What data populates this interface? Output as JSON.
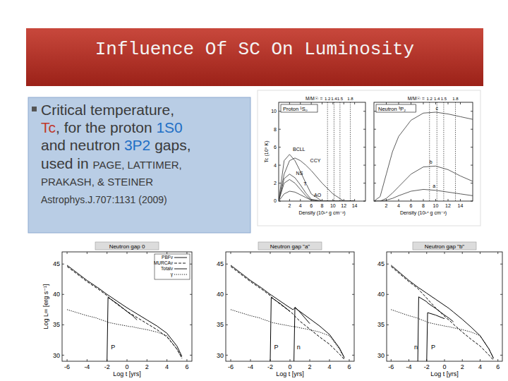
{
  "title": "Influence Of SC On Luminosity",
  "bullet": {
    "lines": [
      [
        {
          "text": "Critical temperature,"
        }
      ],
      [
        {
          "text": "Tc",
          "color": "#c0392b"
        },
        {
          "text": ", for the proton "
        },
        {
          "text": "1S0",
          "color": "#1f6fc5"
        }
      ],
      [
        {
          "text": "and neutron "
        },
        {
          "text": "3P2",
          "color": "#1f6fc5"
        },
        {
          "text": " gaps,"
        }
      ],
      [
        {
          "text": "used in "
        },
        {
          "text": "PAGE, LATTIMER,"
        }
      ],
      [
        {
          "text": "PRAKASH, & STEINER"
        }
      ],
      [
        {
          "text": "Astrophys.J.707:1131 (2009)"
        }
      ]
    ]
  },
  "chart_data": [
    {
      "type": "line",
      "title": "Proton ¹S₀",
      "x_label": "Density (10¹⁴ g cm⁻³)",
      "y_label": "Tc (10⁹ K)",
      "x": [
        0,
        1,
        2,
        3,
        4,
        5,
        6,
        8,
        10,
        12,
        14
      ],
      "series": [
        {
          "color": "#333333",
          "line_style": "solid",
          "values": [
            0,
            4.5,
            5.2,
            4.5,
            3.3,
            2,
            0.8,
            0,
            0,
            0,
            0
          ]
        },
        {
          "color": "#333333",
          "line_style": "solid",
          "values": [
            0,
            3,
            4.5,
            4.8,
            4.5,
            4,
            3.4,
            2,
            0.8,
            0,
            0
          ]
        },
        {
          "color": "#333333",
          "line_style": "solid",
          "values": [
            0,
            2.5,
            3,
            2.6,
            1.8,
            0.9,
            0.2,
            0,
            0,
            0,
            0
          ]
        },
        {
          "color": "#333333",
          "line_style": "solid",
          "values": [
            0,
            2,
            2.4,
            2,
            1.3,
            0.6,
            0.1,
            0,
            0,
            0,
            0
          ]
        },
        {
          "color": "#333333",
          "line_style": "solid",
          "values": [
            0,
            0.8,
            1.1,
            1,
            0.7,
            0.4,
            0.1,
            0,
            0,
            0,
            0
          ]
        }
      ],
      "annotations": [
        {
          "text": "BCLL",
          "x": 2.6,
          "y": 5.6
        },
        {
          "text": "CCY",
          "x": 5.8,
          "y": 4.3
        },
        {
          "text": "NS",
          "x": 3.2,
          "y": 2.9
        },
        {
          "text": "T",
          "x": 4.6,
          "y": 1.7
        },
        {
          "text": "AO",
          "x": 6.5,
          "y": 0.5
        }
      ],
      "mass_axis": {
        "label": "M/M☉ =",
        "ticks": [
          {
            "value": 9,
            "label": "1.2"
          },
          {
            "value": 10.2,
            "label": "1.4"
          },
          {
            "value": 11.3,
            "label": "1.5"
          },
          {
            "value": 13.2,
            "label": "1.8"
          }
        ]
      },
      "xlim": [
        0,
        16
      ],
      "xticks": [
        2,
        4,
        6,
        8,
        10,
        12,
        14
      ],
      "ylim": [
        0,
        11
      ],
      "yticks": [
        0,
        2,
        4,
        6,
        8,
        10
      ]
    },
    {
      "type": "line",
      "title": "Neutron ³P₂",
      "x_label": "Density (10¹⁴ g cm⁻³)",
      "x": [
        0,
        1,
        2,
        3,
        4,
        6,
        8,
        10,
        12,
        14,
        16
      ],
      "series": [
        {
          "color": "#333333",
          "line_style": "solid",
          "values": [
            0,
            0.5,
            3,
            5.5,
            7.2,
            9,
            9.8,
            9.9,
            9.7,
            9.4,
            9.1
          ]
        },
        {
          "color": "#333333",
          "line_style": "solid",
          "values": [
            0,
            0,
            0.3,
            0.9,
            1.6,
            3,
            3.8,
            3.9,
            3.5,
            2.8,
            2.2
          ]
        },
        {
          "color": "#333333",
          "line_style": "solid",
          "values": [
            0,
            0,
            0.1,
            0.3,
            0.6,
            1.1,
            1.3,
            1.2,
            1,
            0.8,
            0.6
          ]
        }
      ],
      "annotations": [
        {
          "text": "c",
          "x": 10,
          "y": 10.1
        },
        {
          "text": "b",
          "x": 9,
          "y": 4.2
        },
        {
          "text": "a",
          "x": 9.5,
          "y": 1.5
        }
      ],
      "mass_axis": {
        "label": "M/M☉ =",
        "ticks": [
          {
            "value": 9,
            "label": "1.2"
          },
          {
            "value": 10.2,
            "label": "1.4"
          },
          {
            "value": 11.3,
            "label": "1.5"
          },
          {
            "value": 13.2,
            "label": "1.8"
          }
        ]
      },
      "xlim": [
        0,
        16
      ],
      "xticks": [
        2,
        4,
        6,
        8,
        10,
        12,
        14
      ],
      "ylim": [
        0,
        11
      ],
      "yticks": [
        0,
        2,
        4,
        6,
        8,
        10
      ],
      "tick_labels": "x"
    },
    {
      "type": "line",
      "title": "Neutron gap 0",
      "x_label": "Log t [yrs]",
      "y_label": "Log L∞ [erg s⁻¹]",
      "x": [
        -6,
        -4,
        -3,
        -2.9,
        -2,
        -1.9,
        -1,
        0,
        0.3,
        0.4,
        0.5,
        1,
        2,
        3,
        4,
        5,
        5.5
      ],
      "series": [
        {
          "name": "PBFν",
          "color": "#000000",
          "line_style": "solid",
          "values": [
            null,
            null,
            null,
            null,
            29,
            39.5,
            38.5,
            37.2,
            36.8,
            36.7,
            36.6,
            35.8,
            null,
            null,
            null,
            null,
            null
          ]
        },
        {
          "name": "MURCAν",
          "color": "#000000",
          "line_style": "dashed",
          "values": [
            44.6,
            42.1,
            41,
            40.9,
            39.8,
            39.6,
            38.4,
            37.2,
            36.9,
            36.8,
            36.7,
            36.2,
            35.2,
            34.2,
            33,
            31,
            29.5
          ]
        },
        {
          "name": "Totalν",
          "color": "#000000",
          "line_style": "solid",
          "values": [
            44.8,
            42.3,
            41.2,
            41.1,
            40,
            39.9,
            38.9,
            37.8,
            37.5,
            37.4,
            37.3,
            36.8,
            35.8,
            34.8,
            33.6,
            31.5,
            29.8
          ]
        },
        {
          "name": "γ",
          "color": "#000000",
          "line_style": "dotted",
          "values": [
            37.5,
            36.5,
            36.1,
            36,
            35.5,
            35.4,
            35.1,
            34.8,
            34.7,
            34.7,
            34.7,
            34.5,
            34.2,
            33.8,
            33.2,
            31,
            29.5
          ]
        }
      ],
      "annotations": [
        {
          "text": "P",
          "x": -1.6,
          "y": 31
        }
      ],
      "legend": "top-right",
      "xlim": [
        -6.5,
        6.5
      ],
      "xticks": [
        -6,
        -4,
        -2,
        0,
        2,
        4,
        6
      ],
      "ylim": [
        29,
        47
      ],
      "yticks": [
        30,
        35,
        40,
        45
      ]
    },
    {
      "type": "line",
      "title": "Neutron gap \"a\"",
      "x_label": "Log t [yrs]",
      "x": [
        -6,
        -4,
        -3,
        -2.9,
        -2,
        -1.9,
        -1,
        0,
        0.3,
        0.4,
        0.5,
        1,
        2,
        3,
        4,
        5,
        5.5
      ],
      "series": [
        {
          "color": "#000000",
          "line_style": "solid",
          "values": [
            null,
            null,
            null,
            null,
            29,
            39.5,
            38.5,
            37.2,
            null,
            29,
            37.9,
            37.1,
            35.2,
            null,
            null,
            null,
            null
          ]
        },
        {
          "color": "#000000",
          "line_style": "dashed",
          "values": [
            44.6,
            42.1,
            41,
            40.9,
            39.8,
            39.6,
            38.4,
            37.2,
            36.8,
            36.6,
            36.4,
            35.6,
            34.3,
            33,
            31.8,
            30.2,
            29.3
          ]
        },
        {
          "color": "#000000",
          "line_style": "solid",
          "values": [
            44.8,
            42.3,
            41.2,
            41.1,
            40,
            39.9,
            38.9,
            37.8,
            37.5,
            37.6,
            37.8,
            37.2,
            36,
            34.8,
            33.4,
            31.2,
            29.6
          ]
        },
        {
          "color": "#000000",
          "line_style": "dotted",
          "values": [
            37.5,
            36.5,
            36.1,
            36,
            35.5,
            35.4,
            35.1,
            34.8,
            34.7,
            34.7,
            34.7,
            34.5,
            34.2,
            33.8,
            33.2,
            31,
            29.5
          ]
        }
      ],
      "annotations": [
        {
          "text": "P",
          "x": -1.6,
          "y": 31
        },
        {
          "text": "n",
          "x": 0.7,
          "y": 31
        }
      ],
      "xlim": [
        -6.5,
        6.5
      ],
      "xticks": [
        -6,
        -4,
        -2,
        0,
        2,
        4,
        6
      ],
      "ylim": [
        29,
        47
      ],
      "yticks": [
        30,
        35,
        40,
        45
      ]
    },
    {
      "type": "line",
      "title": "Neutron gap \"b\"",
      "x_label": "Log t [yrs]",
      "x": [
        -6,
        -4,
        -3,
        -2.9,
        -2,
        -1.9,
        -1,
        0,
        0.3,
        0.4,
        0.5,
        1,
        2,
        3,
        4,
        5,
        5.5
      ],
      "series": [
        {
          "color": "#000000",
          "line_style": "solid",
          "values": [
            null,
            null,
            29,
            39.6,
            38.8,
            38.6,
            37.7,
            36.6,
            36.3,
            36.2,
            36.1,
            35.5,
            null,
            null,
            null,
            null,
            null
          ]
        },
        {
          "color": "#000000",
          "line_style": "solid",
          "values": [
            null,
            null,
            null,
            null,
            29,
            37,
            36.6,
            36,
            null,
            null,
            null,
            null,
            null,
            null,
            null,
            null,
            null
          ]
        },
        {
          "color": "#000000",
          "line_style": "dashed",
          "values": [
            44.6,
            42.1,
            41,
            40.8,
            39.4,
            39.2,
            37.8,
            36.4,
            36,
            35.9,
            35.8,
            35.1,
            33.8,
            32.6,
            31.5,
            30,
            29.2
          ]
        },
        {
          "color": "#000000",
          "line_style": "solid",
          "values": [
            44.8,
            42.3,
            41.2,
            41.1,
            40.2,
            40.1,
            39.2,
            38.2,
            37.9,
            37.8,
            37.7,
            37.1,
            35.9,
            34.6,
            33.2,
            31,
            29.5
          ]
        },
        {
          "color": "#000000",
          "line_style": "dotted",
          "values": [
            37.5,
            36.5,
            36.1,
            36,
            35.5,
            35.4,
            35.1,
            34.8,
            34.7,
            34.7,
            34.7,
            34.5,
            34.2,
            33.8,
            33.2,
            31,
            29.5
          ]
        }
      ],
      "annotations": [
        {
          "text": "n",
          "x": -3.4,
          "y": 31
        },
        {
          "text": "P",
          "x": -1.5,
          "y": 31
        }
      ],
      "xlim": [
        -6.5,
        6.5
      ],
      "xticks": [
        -6,
        -4,
        -2,
        0,
        2,
        4,
        6
      ],
      "ylim": [
        29,
        47
      ],
      "yticks": [
        30,
        35,
        40,
        45
      ]
    }
  ]
}
